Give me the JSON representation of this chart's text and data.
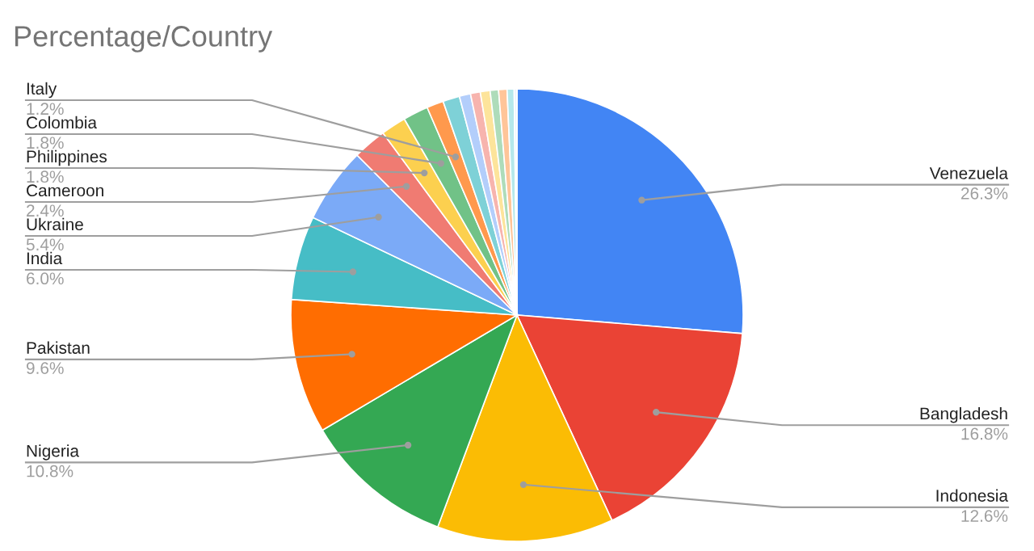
{
  "chart_data": {
    "type": "pie",
    "title": "Percentage/Country",
    "categories": [
      "Venezuela",
      "Bangladesh",
      "Indonesia",
      "Nigeria",
      "Pakistan",
      "India",
      "Ukraine",
      "Cameroon",
      "Philippines",
      "Colombia",
      "Italy",
      null,
      null,
      null,
      null,
      null,
      null,
      null,
      null
    ],
    "values": [
      26.3,
      16.8,
      12.6,
      10.8,
      9.6,
      6.0,
      5.4,
      2.4,
      1.8,
      1.8,
      1.2,
      1.2,
      0.8,
      0.7,
      0.7,
      0.6,
      0.6,
      0.5,
      0.2
    ],
    "value_labels": [
      "26.3%",
      "16.8%",
      "12.6%",
      "10.8%",
      "9.6%",
      "6.0%",
      "5.4%",
      "2.4%",
      "1.8%",
      "1.8%",
      "1.2%",
      null,
      null,
      null,
      null,
      null,
      null,
      null,
      null
    ],
    "colors": [
      "#4285f4",
      "#ea4335",
      "#fbbc04",
      "#34a853",
      "#ff6d01",
      "#46bdc6",
      "#7baaf7",
      "#f07b72",
      "#fcd04f",
      "#71c287",
      "#ff994d",
      "#7ed1d7",
      "#b3cefb",
      "#f7b4ae",
      "#fde49b",
      "#aedcba",
      "#ffc599",
      "#b5e8eb",
      "#ecf3fe"
    ],
    "legend": false
  }
}
